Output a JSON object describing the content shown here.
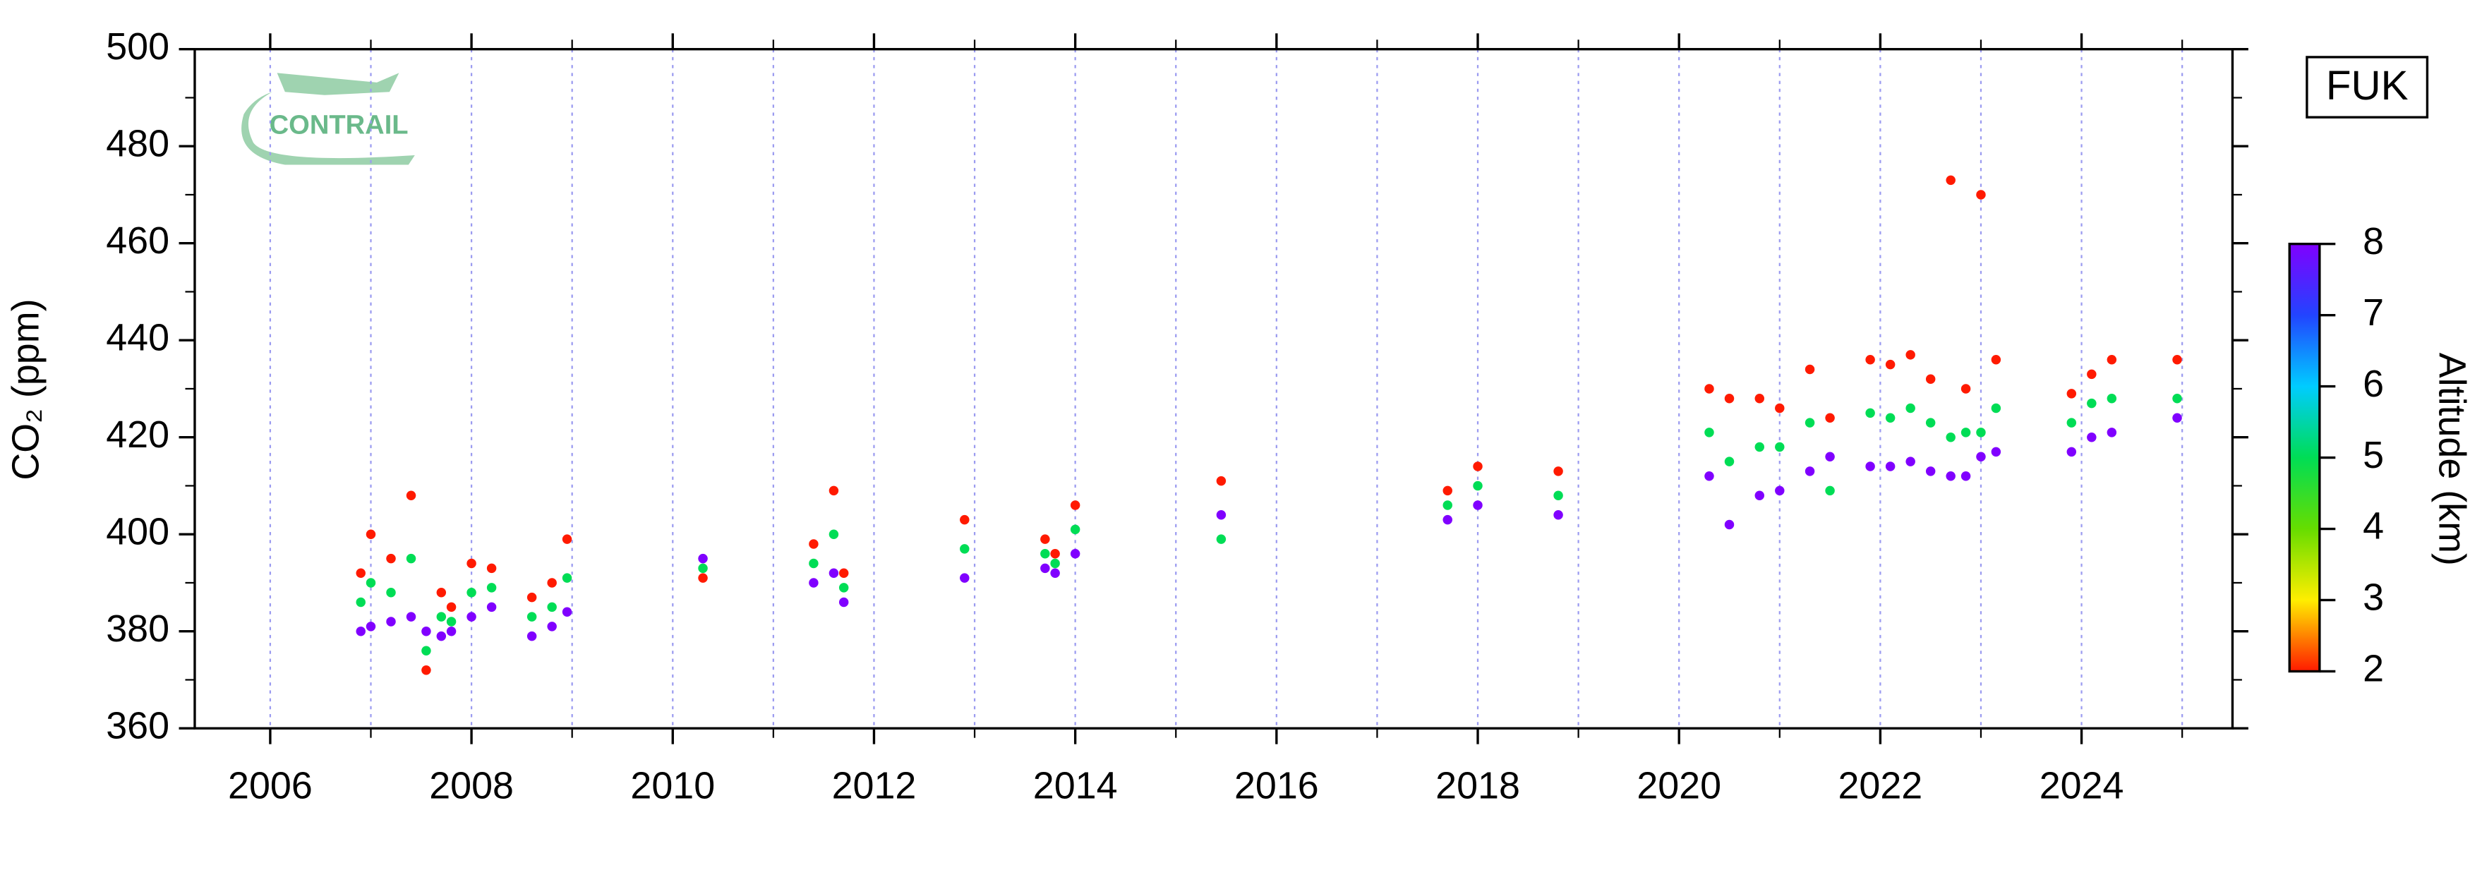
{
  "chart_data": {
    "type": "scatter",
    "ylabel": "CO₂ (ppm)",
    "station": "FUK",
    "logo": "CONTRAIL",
    "colorbar_label": "Altitude (km)",
    "xlim": [
      2005.25,
      2025.5
    ],
    "ylim": [
      360,
      500
    ],
    "xticks": [
      2006,
      2008,
      2010,
      2012,
      2014,
      2016,
      2018,
      2020,
      2022,
      2024
    ],
    "x_minor_ticks": [
      2007,
      2009,
      2011,
      2013,
      2015,
      2017,
      2019,
      2021,
      2023,
      2025
    ],
    "yticks": [
      360,
      380,
      400,
      420,
      440,
      460,
      480,
      500
    ],
    "y_minor_ticks": [
      370,
      390,
      410,
      430,
      450,
      470,
      490
    ],
    "grid": true,
    "colorbar_lim": [
      2,
      8
    ],
    "colorbar_ticks": [
      2,
      3,
      4,
      5,
      6,
      7,
      8
    ],
    "colormap": [
      "#ff1a00",
      "#ffee00",
      "#66dd00",
      "#00dd55",
      "#00ccff",
      "#2244ff",
      "#8000ff"
    ],
    "series": [
      {
        "x": [
          2006.9,
          2006.9,
          2006.9,
          2007.0,
          2007.0,
          2007.0,
          2007.2,
          2007.2,
          2007.2,
          2007.4,
          2007.4,
          2007.4,
          2007.55,
          2007.55,
          2007.55,
          2007.7,
          2007.7,
          2007.7,
          2007.8,
          2007.8,
          2007.8,
          2008.0,
          2008.0,
          2008.0,
          2008.2,
          2008.2,
          2008.2,
          2008.6,
          2008.6,
          2008.6,
          2008.8,
          2008.8,
          2008.8,
          2008.95,
          2008.95,
          2008.95,
          2010.3,
          2010.3,
          2010.3,
          2011.4,
          2011.4,
          2011.4,
          2011.6,
          2011.6,
          2011.6,
          2011.7,
          2011.7,
          2011.7,
          2012.9,
          2012.9,
          2012.9,
          2013.7,
          2013.7,
          2013.7,
          2013.8,
          2013.8,
          2013.8,
          2014.0,
          2014.0,
          2014.0,
          2015.45,
          2015.45,
          2015.45,
          2017.7,
          2017.7,
          2017.7,
          2018.0,
          2018.0,
          2018.0,
          2018.8,
          2018.8,
          2018.8,
          2020.3,
          2020.3,
          2020.3,
          2020.5,
          2020.5,
          2020.5,
          2020.8,
          2020.8,
          2020.8,
          2021.0,
          2021.0,
          2021.0,
          2021.3,
          2021.3,
          2021.3,
          2021.5,
          2021.5,
          2021.5,
          2021.9,
          2021.9,
          2021.9,
          2022.1,
          2022.1,
          2022.1,
          2022.3,
          2022.3,
          2022.3,
          2022.5,
          2022.5,
          2022.5,
          2022.7,
          2022.7,
          2022.7,
          2022.85,
          2022.85,
          2022.85,
          2023.0,
          2023.0,
          2023.0,
          2023.15,
          2023.15,
          2023.15,
          2023.9,
          2023.9,
          2023.9,
          2024.1,
          2024.1,
          2024.1,
          2024.3,
          2024.3,
          2024.3,
          2024.95,
          2024.95,
          2024.95
        ],
        "values": [
          392,
          386,
          380,
          400,
          390,
          381,
          395,
          388,
          382,
          408,
          395,
          383,
          372,
          376,
          380,
          388,
          383,
          379,
          385,
          382,
          380,
          394,
          388,
          383,
          393,
          389,
          385,
          387,
          383,
          379,
          390,
          385,
          381,
          399,
          391,
          384,
          391,
          393,
          395,
          398,
          394,
          390,
          409,
          400,
          392,
          392,
          389,
          386,
          403,
          397,
          391,
          399,
          396,
          393,
          396,
          394,
          392,
          406,
          401,
          396,
          411,
          399,
          404,
          409,
          406,
          403,
          414,
          410,
          406,
          413,
          408,
          404,
          430,
          421,
          412,
          428,
          415,
          402,
          428,
          418,
          408,
          426,
          418,
          409,
          434,
          423,
          413,
          424,
          409,
          416,
          436,
          425,
          414,
          435,
          424,
          414,
          437,
          426,
          415,
          432,
          423,
          413,
          473,
          420,
          412,
          430,
          421,
          412,
          470,
          421,
          416,
          436,
          426,
          417,
          429,
          423,
          417,
          433,
          427,
          420,
          436,
          428,
          421,
          436,
          428,
          424
        ],
        "altitude": [
          2,
          5,
          8,
          2,
          5,
          8,
          2,
          5,
          8,
          2,
          5,
          8,
          2,
          5,
          8,
          2,
          5,
          8,
          2,
          5,
          8,
          2,
          5,
          8,
          2,
          5,
          8,
          2,
          5,
          8,
          2,
          5,
          8,
          2,
          5,
          8,
          2,
          5,
          8,
          2,
          5,
          8,
          2,
          5,
          8,
          2,
          5,
          8,
          2,
          5,
          8,
          2,
          5,
          8,
          2,
          5,
          8,
          2,
          5,
          8,
          2,
          5,
          8,
          2,
          5,
          8,
          2,
          5,
          8,
          2,
          5,
          8,
          2,
          5,
          8,
          2,
          5,
          8,
          2,
          5,
          8,
          2,
          5,
          8,
          2,
          5,
          8,
          2,
          5,
          8,
          2,
          5,
          8,
          2,
          5,
          8,
          2,
          5,
          8,
          2,
          5,
          8,
          2,
          5,
          8,
          2,
          5,
          8,
          2,
          5,
          8,
          2,
          5,
          8,
          2,
          5,
          8,
          2,
          5,
          8,
          2,
          5,
          8,
          2,
          5,
          8
        ]
      }
    ]
  }
}
